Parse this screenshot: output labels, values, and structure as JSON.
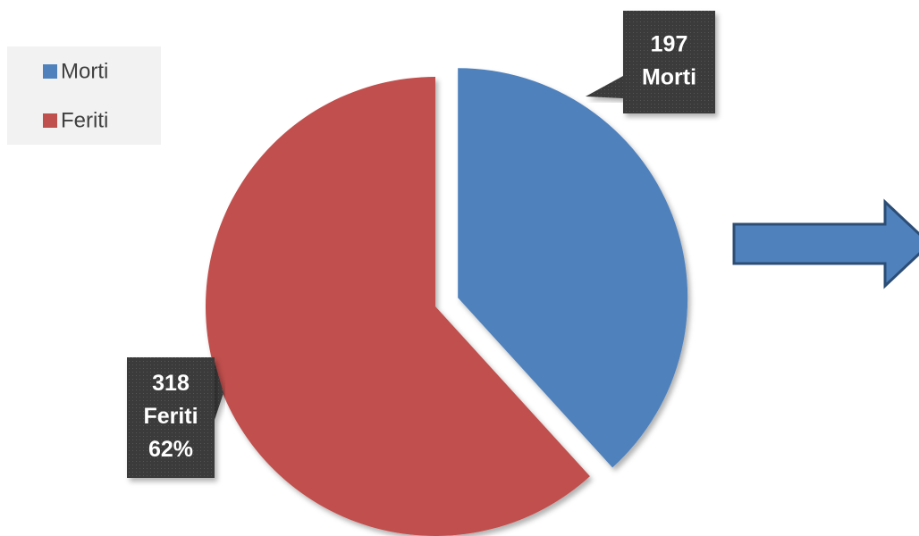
{
  "chart_data": {
    "type": "pie",
    "categories": [
      "Morti",
      "Feriti"
    ],
    "values": [
      197,
      318
    ],
    "colors": [
      "#4f81bd",
      "#c0504d"
    ],
    "percentages": [
      null,
      62
    ],
    "percentage_labels": [
      null,
      "62%"
    ],
    "legend": "top-left"
  }
}
